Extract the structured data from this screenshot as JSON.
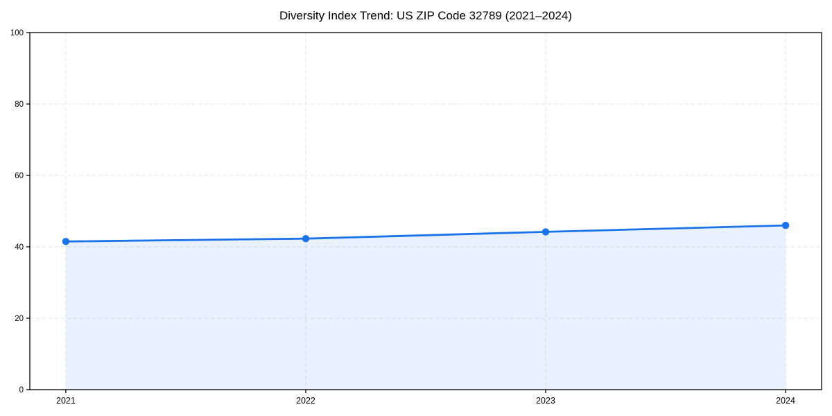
{
  "page": {
    "background": "#ffffff"
  },
  "chart_data": {
    "type": "line",
    "title": "Diversity Index Trend: US ZIP Code 32789 (2021–2024)",
    "x": [
      2021,
      2022,
      2023,
      2024
    ],
    "x_tick_labels": [
      "2021",
      "2022",
      "2023",
      "2024"
    ],
    "series": [
      {
        "name": "Diversity Index",
        "values": [
          41.5,
          42.3,
          44.2,
          46.0
        ]
      }
    ],
    "xlabel": "",
    "ylabel": "",
    "xlim": [
      2020.85,
      2024.15
    ],
    "ylim": [
      0,
      100
    ],
    "yticks": [
      0,
      20,
      40,
      60,
      80,
      100
    ],
    "grid": true,
    "grid_style": "dashed",
    "legend_position": "none",
    "line_color": "#1a73e8",
    "marker_color": "#1a73e8",
    "fill_alpha": 0.1,
    "grid_color": "#e3e3e3",
    "axis_color": "#000000",
    "text_color": "#000000"
  }
}
